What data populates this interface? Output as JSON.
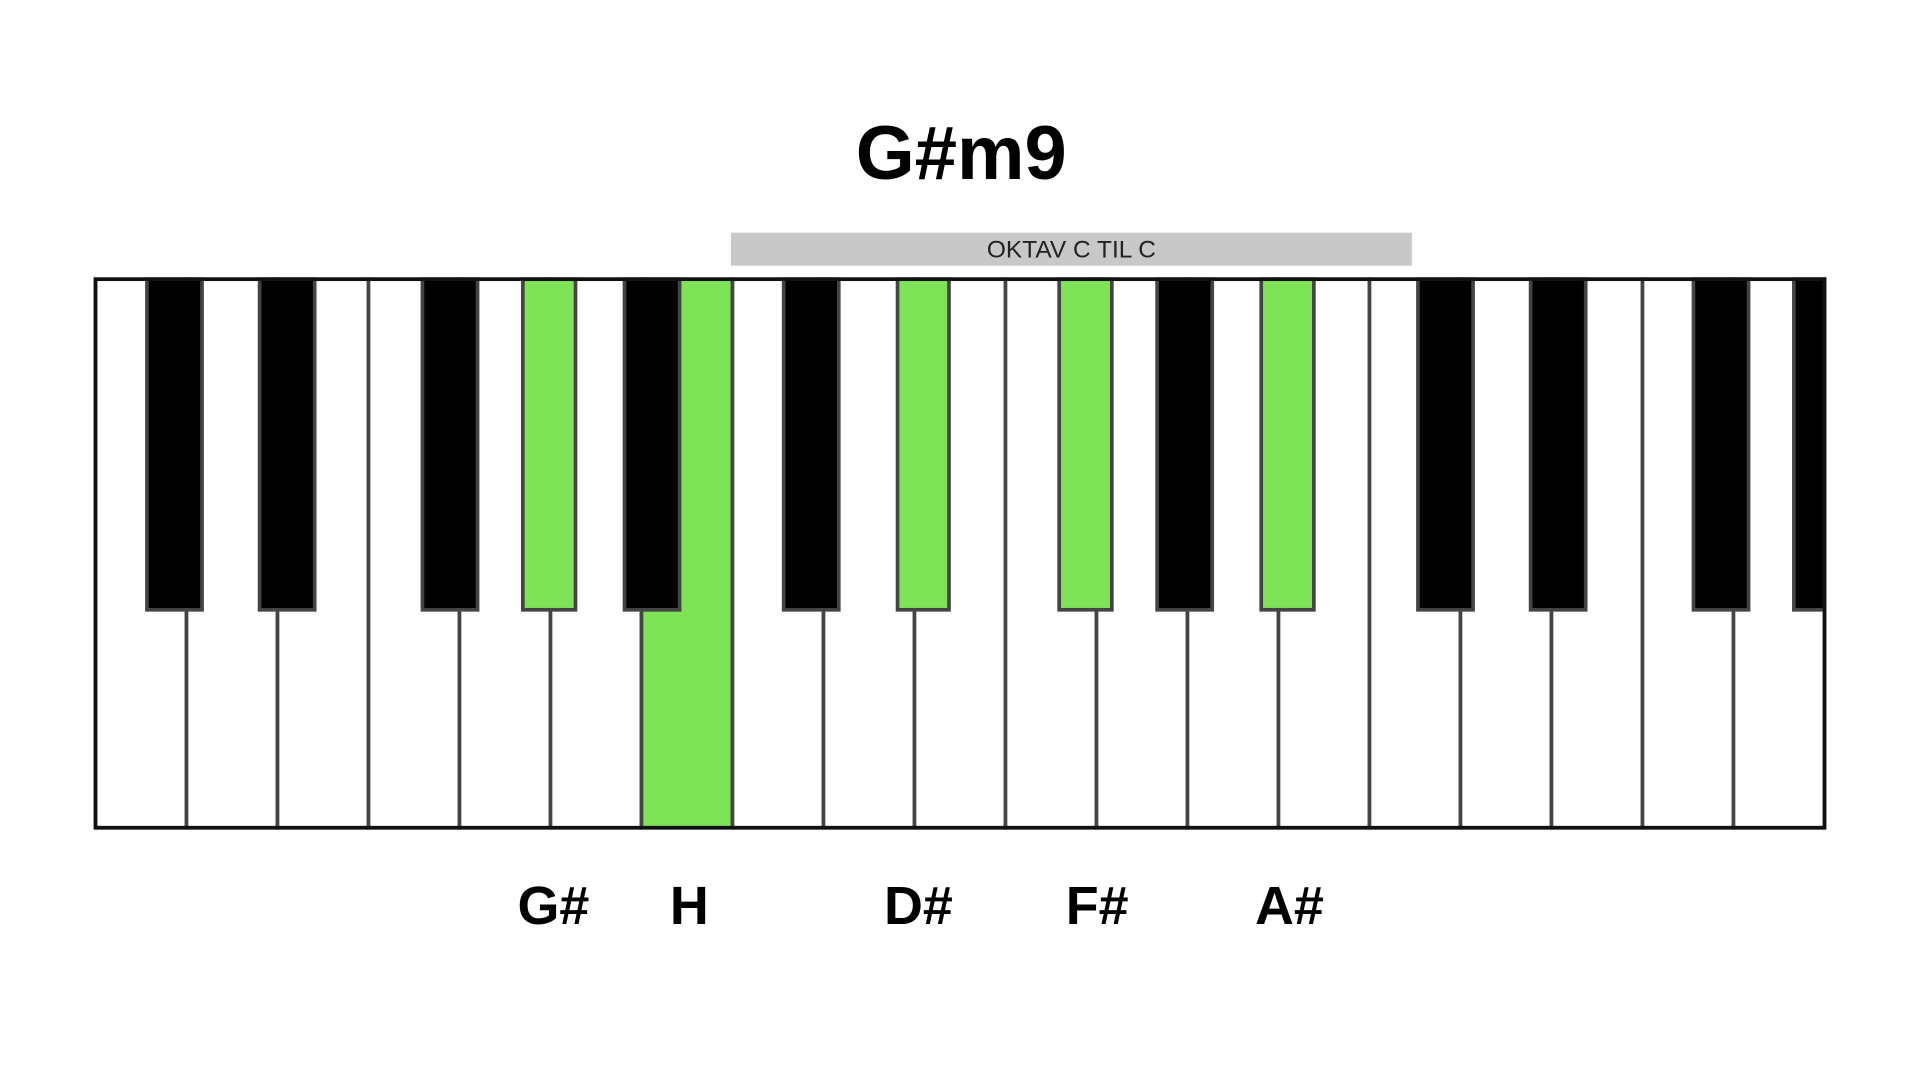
{
  "title": "G#m9",
  "range_label": "OKTAV C TIL C",
  "notes": [
    "G#",
    "H",
    "D#",
    "F#",
    "A#"
  ]
}
